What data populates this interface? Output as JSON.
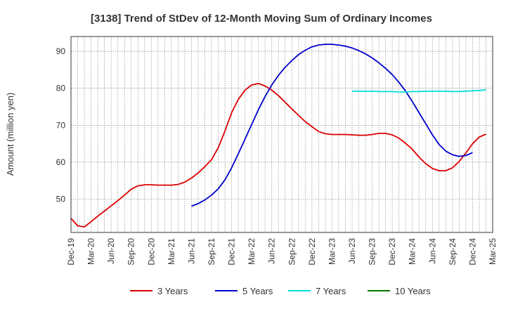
{
  "chart_data": {
    "type": "line",
    "title": "[3138]  Trend of StDev of 12-Month Moving Sum of Ordinary Incomes",
    "xlabel": "",
    "ylabel": "Amount (million yen)",
    "ylim": [
      41,
      94
    ],
    "yticks": [
      50,
      60,
      70,
      80,
      90
    ],
    "x_ticks": [
      "Dec-19",
      "Mar-20",
      "Jun-20",
      "Sep-20",
      "Dec-20",
      "Mar-21",
      "Jun-21",
      "Sep-21",
      "Dec-21",
      "Mar-22",
      "Jun-22",
      "Sep-22",
      "Dec-22",
      "Mar-23",
      "Jun-23",
      "Sep-23",
      "Dec-23",
      "Mar-24",
      "Jun-24",
      "Sep-24",
      "Dec-24",
      "Mar-25"
    ],
    "grid": true,
    "legend_position": "bottom",
    "series": [
      {
        "name": "3 Years",
        "color": "#dd0000",
        "start_month": "Dec-19",
        "values": [
          44.8,
          42.8,
          42.5,
          43.9,
          45.4,
          46.8,
          48.2,
          49.6,
          51.1,
          52.7,
          53.6,
          53.9,
          53.9,
          53.8,
          53.8,
          53.8,
          54.0,
          54.6,
          55.7,
          57.1,
          58.8,
          60.7,
          63.9,
          68.4,
          73.4,
          77.0,
          79.5,
          80.9,
          81.3,
          80.6,
          79.5,
          78.0,
          76.2,
          74.4,
          72.7,
          71.0,
          69.6,
          68.3,
          67.7,
          67.5,
          67.5,
          67.5,
          67.4,
          67.3,
          67.3,
          67.5,
          67.8,
          67.8,
          67.4,
          66.5,
          65.1,
          63.5,
          61.4,
          59.6,
          58.3,
          57.7,
          57.7,
          58.5,
          60.2,
          62.5,
          65.0,
          66.8,
          67.6
        ]
      },
      {
        "name": "5 Years",
        "color": "#0000cc",
        "start_month": "Jun-21",
        "values": [
          48.1,
          48.8,
          49.8,
          51.1,
          52.8,
          55.2,
          58.5,
          62.3,
          66.2,
          70.2,
          74.2,
          77.8,
          80.9,
          83.5,
          85.7,
          87.5,
          89.1,
          90.3,
          91.2,
          91.7,
          91.9,
          91.9,
          91.7,
          91.4,
          90.9,
          90.2,
          89.3,
          88.2,
          86.9,
          85.4,
          83.7,
          81.6,
          79.2,
          76.4,
          73.4,
          70.4,
          67.4,
          64.8,
          63.0,
          62.0,
          61.6,
          61.8,
          62.6
        ]
      },
      {
        "name": "7 Years",
        "color": "#00dddd",
        "start_month": "Jun-23",
        "values": [
          79.2,
          79.2,
          79.2,
          79.2,
          79.1,
          79.1,
          79.1,
          79.0,
          79.0,
          79.1,
          79.1,
          79.2,
          79.2,
          79.2,
          79.2,
          79.1,
          79.1,
          79.2,
          79.3,
          79.4,
          79.6
        ]
      },
      {
        "name": "10 Years",
        "color": "#007700",
        "start_month": "",
        "values": []
      }
    ]
  }
}
